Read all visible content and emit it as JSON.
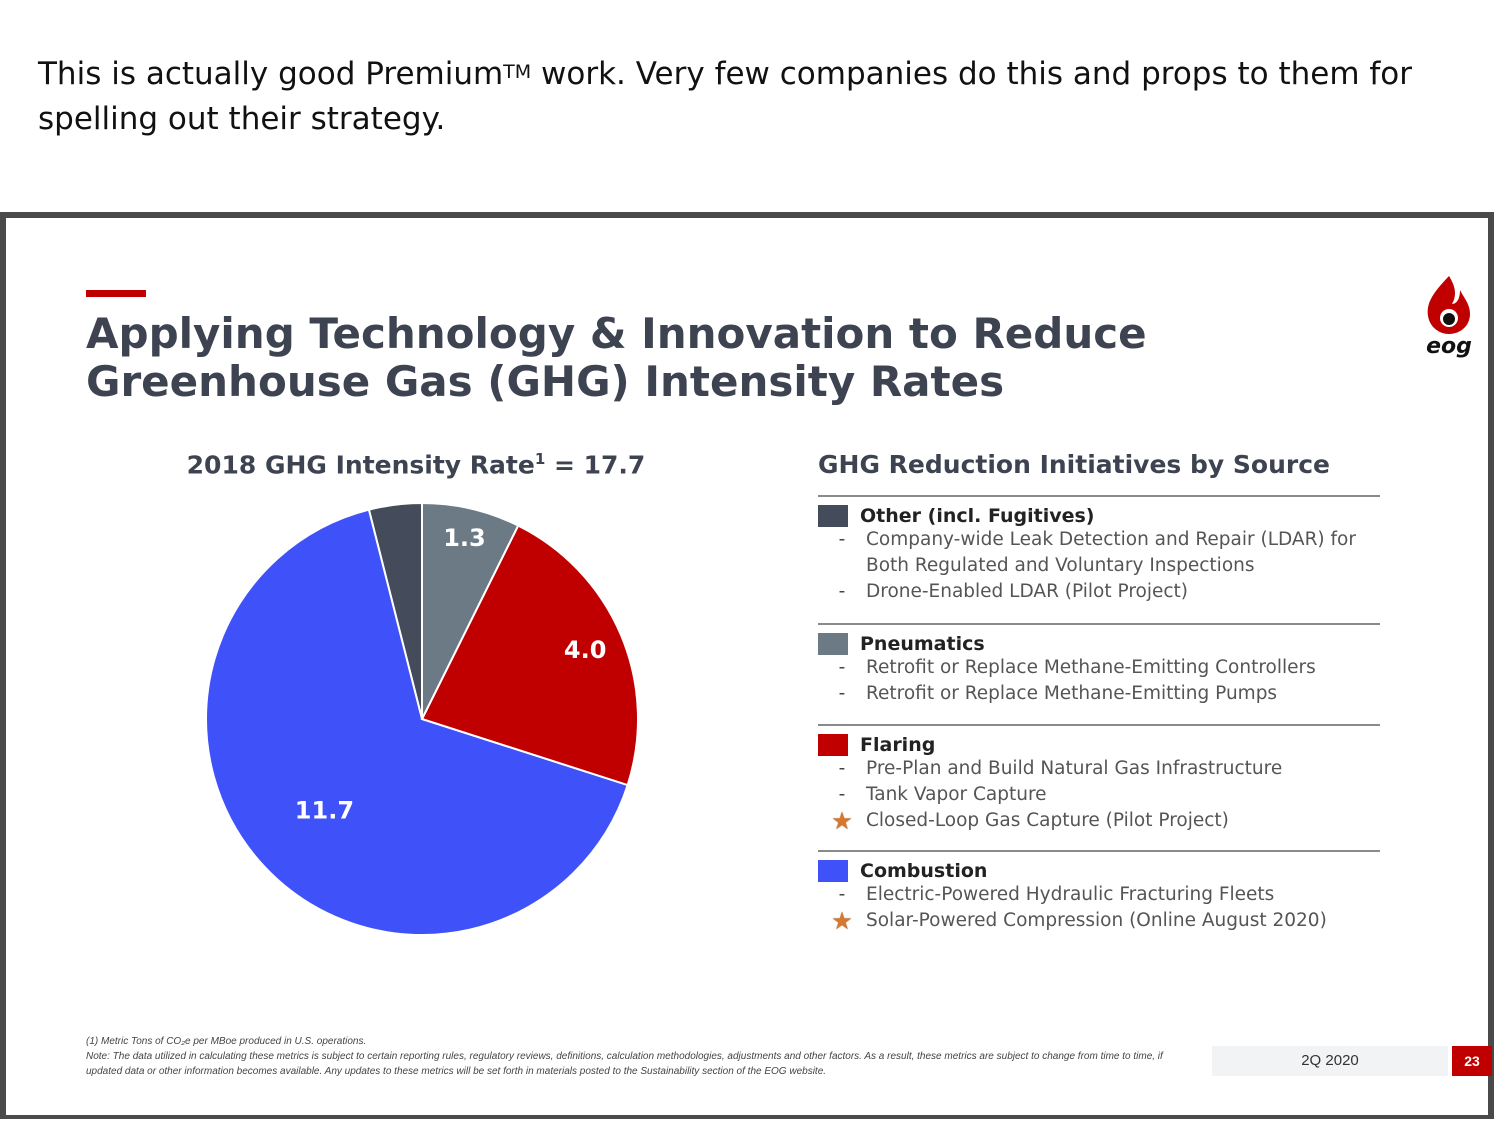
{
  "post": {
    "text_before_tm": "This is actually good Premium",
    "tm": "TM",
    "text_after_tm": " work. Very few companies do this and props to them for spelling out their strategy."
  },
  "slide": {
    "title": "Applying Technology & Innovation to Reduce Greenhouse Gas (GHG) Intensity Rates",
    "logo_text": "eog",
    "pie_title_main": "2018 GHG Intensity Rate",
    "pie_title_sup": "1",
    "pie_title_value": " = 17.7",
    "initiatives_title": "GHG Reduction Initiatives by Source",
    "groups": [
      {
        "name": "Other (incl. Fugitives)",
        "color": "#444b5a",
        "items": [
          {
            "marker": "-",
            "text": "Company-wide Leak Detection and Repair (LDAR) for Both Regulated and Voluntary Inspections"
          },
          {
            "marker": "-",
            "text": "Drone-Enabled LDAR (Pilot Project)"
          }
        ]
      },
      {
        "name": "Pneumatics",
        "color": "#6c7a86",
        "items": [
          {
            "marker": "-",
            "text": "Retrofit or Replace Methane-Emitting Controllers"
          },
          {
            "marker": "-",
            "text": "Retrofit or Replace Methane-Emitting Pumps"
          }
        ]
      },
      {
        "name": "Flaring",
        "color": "#c00000",
        "items": [
          {
            "marker": "-",
            "text": "Pre-Plan and Build Natural Gas Infrastructure"
          },
          {
            "marker": "-",
            "text": "Tank Vapor Capture"
          },
          {
            "marker": "★",
            "text": "Closed-Loop Gas Capture (Pilot Project)"
          }
        ]
      },
      {
        "name": "Combustion",
        "color": "#3f51f8",
        "items": [
          {
            "marker": "-",
            "text": "Electric-Powered Hydraulic Fracturing Fleets"
          },
          {
            "marker": "★",
            "text": "Solar-Powered Compression (Online August 2020)"
          }
        ]
      }
    ],
    "footnote_line1": "(1)     Metric Tons of CO₂e per MBoe produced in U.S. operations.",
    "footnote_line2": "Note: The data utilized in calculating these metrics is subject to certain reporting rules, regulatory reviews, definitions, calculation methodologies, adjustments and other factors.  As a result, these metrics are subject to change from time to time, if updated data or other information becomes available.  Any updates to these metrics will be set forth in materials posted to the Sustainability section of the EOG website.",
    "date": "2Q 2020",
    "page_number": "23"
  },
  "chart_data": {
    "type": "pie",
    "title": "2018 GHG Intensity Rate1 = 17.7",
    "total": 17.7,
    "slices": [
      {
        "name": "Other (incl. Fugitives)",
        "value": 0.7,
        "label": "0.7",
        "color": "#444b5a"
      },
      {
        "name": "Combustion",
        "value": 11.7,
        "label": "11.7",
        "color": "#3f51f8"
      },
      {
        "name": "Flaring",
        "value": 4.0,
        "label": "4.0",
        "color": "#c00000"
      },
      {
        "name": "Pneumatics",
        "value": 1.3,
        "label": "1.3",
        "color": "#6c7a86"
      }
    ],
    "start": "12 o'clock",
    "direction": "counter-clockwise"
  }
}
